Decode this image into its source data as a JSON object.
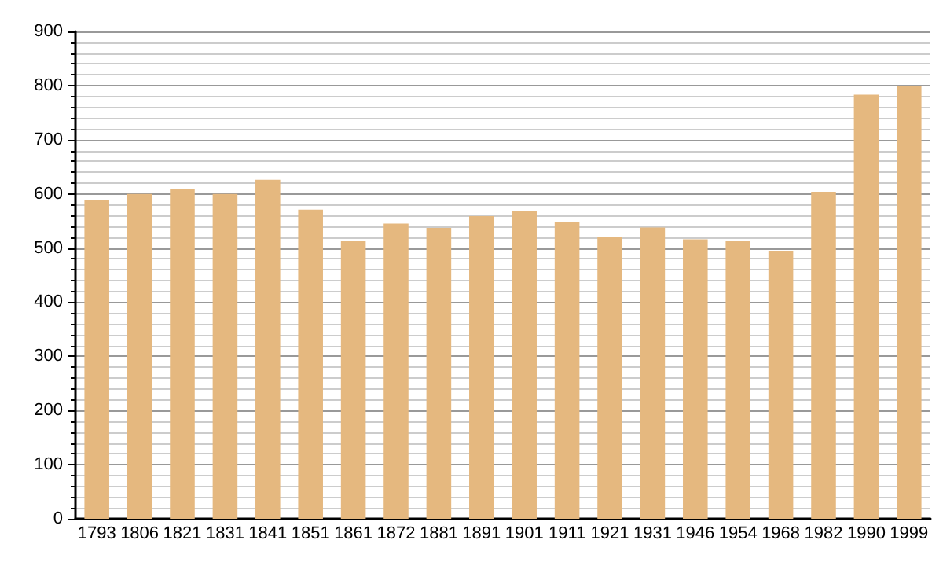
{
  "chart_data": {
    "type": "bar",
    "categories": [
      "1793",
      "1806",
      "1821",
      "1831",
      "1841",
      "1851",
      "1861",
      "1872",
      "1881",
      "1891",
      "1901",
      "1911",
      "1921",
      "1931",
      "1946",
      "1954",
      "1968",
      "1982",
      "1990",
      "1999"
    ],
    "values": [
      588,
      600,
      609,
      600,
      626,
      571,
      513,
      545,
      537,
      559,
      568,
      548,
      521,
      538,
      516,
      513,
      495,
      604,
      783,
      800
    ],
    "color": "#e5b87f",
    "ylim": [
      0,
      900
    ],
    "yticks": [
      0,
      100,
      200,
      300,
      400,
      500,
      600,
      700,
      800,
      900
    ],
    "grid": "y"
  }
}
